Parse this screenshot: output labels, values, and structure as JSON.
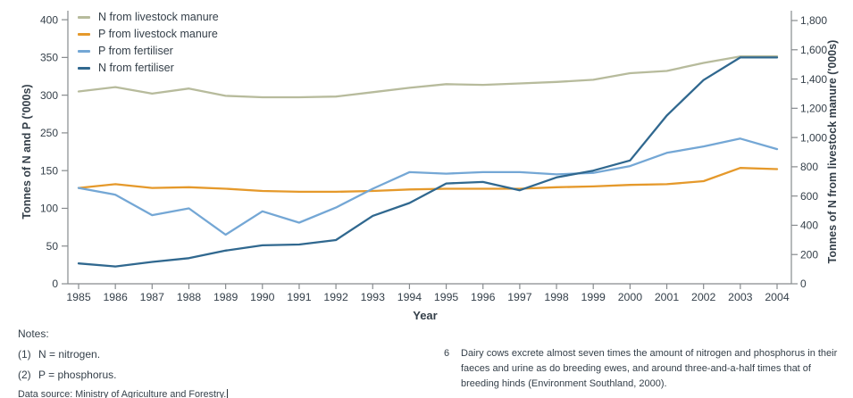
{
  "colors": {
    "n_livestock_manure": "#b7bb9c",
    "p_livestock_manure": "#e5992b",
    "p_fertiliser": "#74a7d5",
    "n_fertiliser": "#30688f",
    "text": "#343f49",
    "axis_line": "#878b8e"
  },
  "chart_data": {
    "type": "line",
    "x": [
      1985,
      1986,
      1987,
      1988,
      1989,
      1990,
      1991,
      1992,
      1993,
      1994,
      1995,
      1996,
      1997,
      1998,
      1999,
      2000,
      2001,
      2002,
      2003,
      2004
    ],
    "xlabel": "Year",
    "grid": "off",
    "legend_position": "top-left-inside",
    "series": [
      {
        "name": "N from livestock manure",
        "axis": "right",
        "color": "#b7bb9c",
        "values": [
          1315,
          1345,
          1300,
          1335,
          1285,
          1275,
          1275,
          1280,
          1310,
          1340,
          1365,
          1360,
          1370,
          1380,
          1395,
          1440,
          1455,
          1510,
          1555,
          1555
        ]
      },
      {
        "name": "P from livestock manure",
        "axis": "left",
        "color": "#e5992b",
        "values": [
          127,
          132,
          127,
          128,
          126,
          123,
          122,
          122,
          123,
          125,
          126,
          126,
          126,
          128,
          129,
          131,
          132,
          136,
          157,
          154
        ]
      },
      {
        "name": "P from fertiliser",
        "axis": "left",
        "color": "#74a7d5",
        "values": [
          127,
          118,
          91,
          100,
          65,
          96,
          81,
          101,
          126,
          148,
          146,
          148,
          148,
          145,
          147,
          162,
          197,
          214,
          235,
          207
        ]
      },
      {
        "name": "N from fertiliser",
        "axis": "left",
        "color": "#30688f",
        "values": [
          27,
          23,
          29,
          34,
          44,
          51,
          52,
          58,
          90,
          107,
          133,
          135,
          124,
          141,
          150,
          177,
          273,
          320,
          350,
          350
        ]
      }
    ],
    "left_axis": {
      "label": "Tonnes of N and P ('000s)",
      "tick_labels": [
        "0",
        "50",
        "100",
        "150",
        "250",
        "300",
        "350",
        "400"
      ],
      "tick_values": [
        0,
        50,
        100,
        150,
        250,
        300,
        350,
        400
      ]
    },
    "right_axis": {
      "label": "Tonnes of N from livestock manure ('000s)",
      "tick_labels": [
        "0",
        "200",
        "400",
        "600",
        "800",
        "1,000",
        "1,200",
        "1,400",
        "1,600",
        "1,800"
      ],
      "tick_values": [
        0,
        200,
        400,
        600,
        800,
        1000,
        1200,
        1400,
        1600,
        1800
      ],
      "range": [
        0,
        1800
      ]
    }
  },
  "notes": {
    "title": "Notes:",
    "items": [
      {
        "num": "(1)",
        "text": "N = nitrogen."
      },
      {
        "num": "(2)",
        "text": "P = phosphorus."
      }
    ],
    "data_source": "Data source: Ministry of Agriculture and Forestry."
  },
  "footnote": {
    "num": "6",
    "text": "Dairy cows excrete almost seven times the amount of nitrogen and phosphorus in their faeces and urine as do breeding ewes, and around three-and-a-half times that of breeding hinds (Environment Southland, 2000)."
  }
}
